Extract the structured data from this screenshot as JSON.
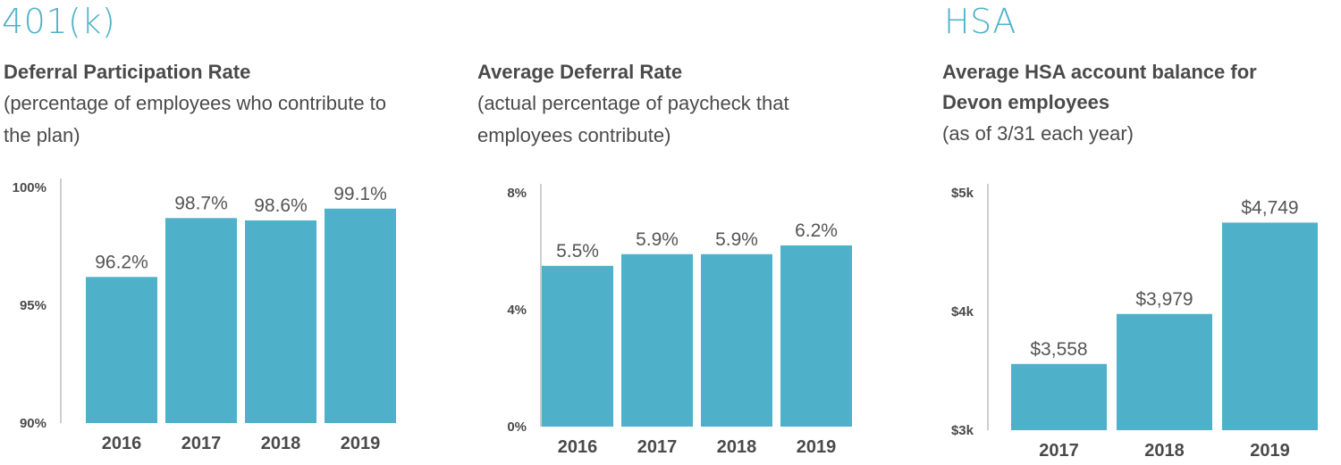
{
  "sections": {
    "k401": {
      "title": "401(k)"
    },
    "hsa": {
      "title": "HSA"
    }
  },
  "colors": {
    "bar": "#4fb1c9",
    "section_title": "#4fb1c9",
    "text": "#4a4a4a"
  },
  "chart_data": [
    {
      "type": "bar",
      "title": "Deferral Participation Rate",
      "subtitle": "(percentage of employees who contribute to the plan)",
      "categories": [
        "2016",
        "2017",
        "2018",
        "2019"
      ],
      "values": [
        96.2,
        98.7,
        98.6,
        99.1
      ],
      "value_labels": [
        "96.2%",
        "98.7%",
        "98.6%",
        "99.1%"
      ],
      "ylim": [
        90,
        100
      ],
      "yticks": [
        90,
        95,
        100
      ],
      "ytick_labels": [
        "90%",
        "95%",
        "100%"
      ],
      "xlabel": "",
      "ylabel": "",
      "grid": false
    },
    {
      "type": "bar",
      "title": "Average Deferral Rate",
      "subtitle": "(actual percentage of paycheck that employees contribute)",
      "categories": [
        "2016",
        "2017",
        "2018",
        "2019"
      ],
      "values": [
        5.5,
        5.9,
        5.9,
        6.2
      ],
      "value_labels": [
        "5.5%",
        "5.9%",
        "5.9%",
        "6.2%"
      ],
      "ylim": [
        0,
        8
      ],
      "yticks": [
        0,
        4,
        8
      ],
      "ytick_labels": [
        "0%",
        "4%",
        "8%"
      ],
      "xlabel": "",
      "ylabel": "",
      "grid": false
    },
    {
      "type": "bar",
      "title": "Average HSA account balance for Devon employees",
      "subtitle": "(as of 3/31 each year)",
      "categories": [
        "2017",
        "2018",
        "2019"
      ],
      "values": [
        3558,
        3979,
        4749
      ],
      "value_labels": [
        "$3,558",
        "$3,979",
        "$4,749"
      ],
      "ylim": [
        3000,
        5000
      ],
      "yticks": [
        3000,
        4000,
        5000
      ],
      "ytick_labels": [
        "$3k",
        "$4k",
        "$5k"
      ],
      "xlabel": "",
      "ylabel": "",
      "grid": false
    }
  ]
}
